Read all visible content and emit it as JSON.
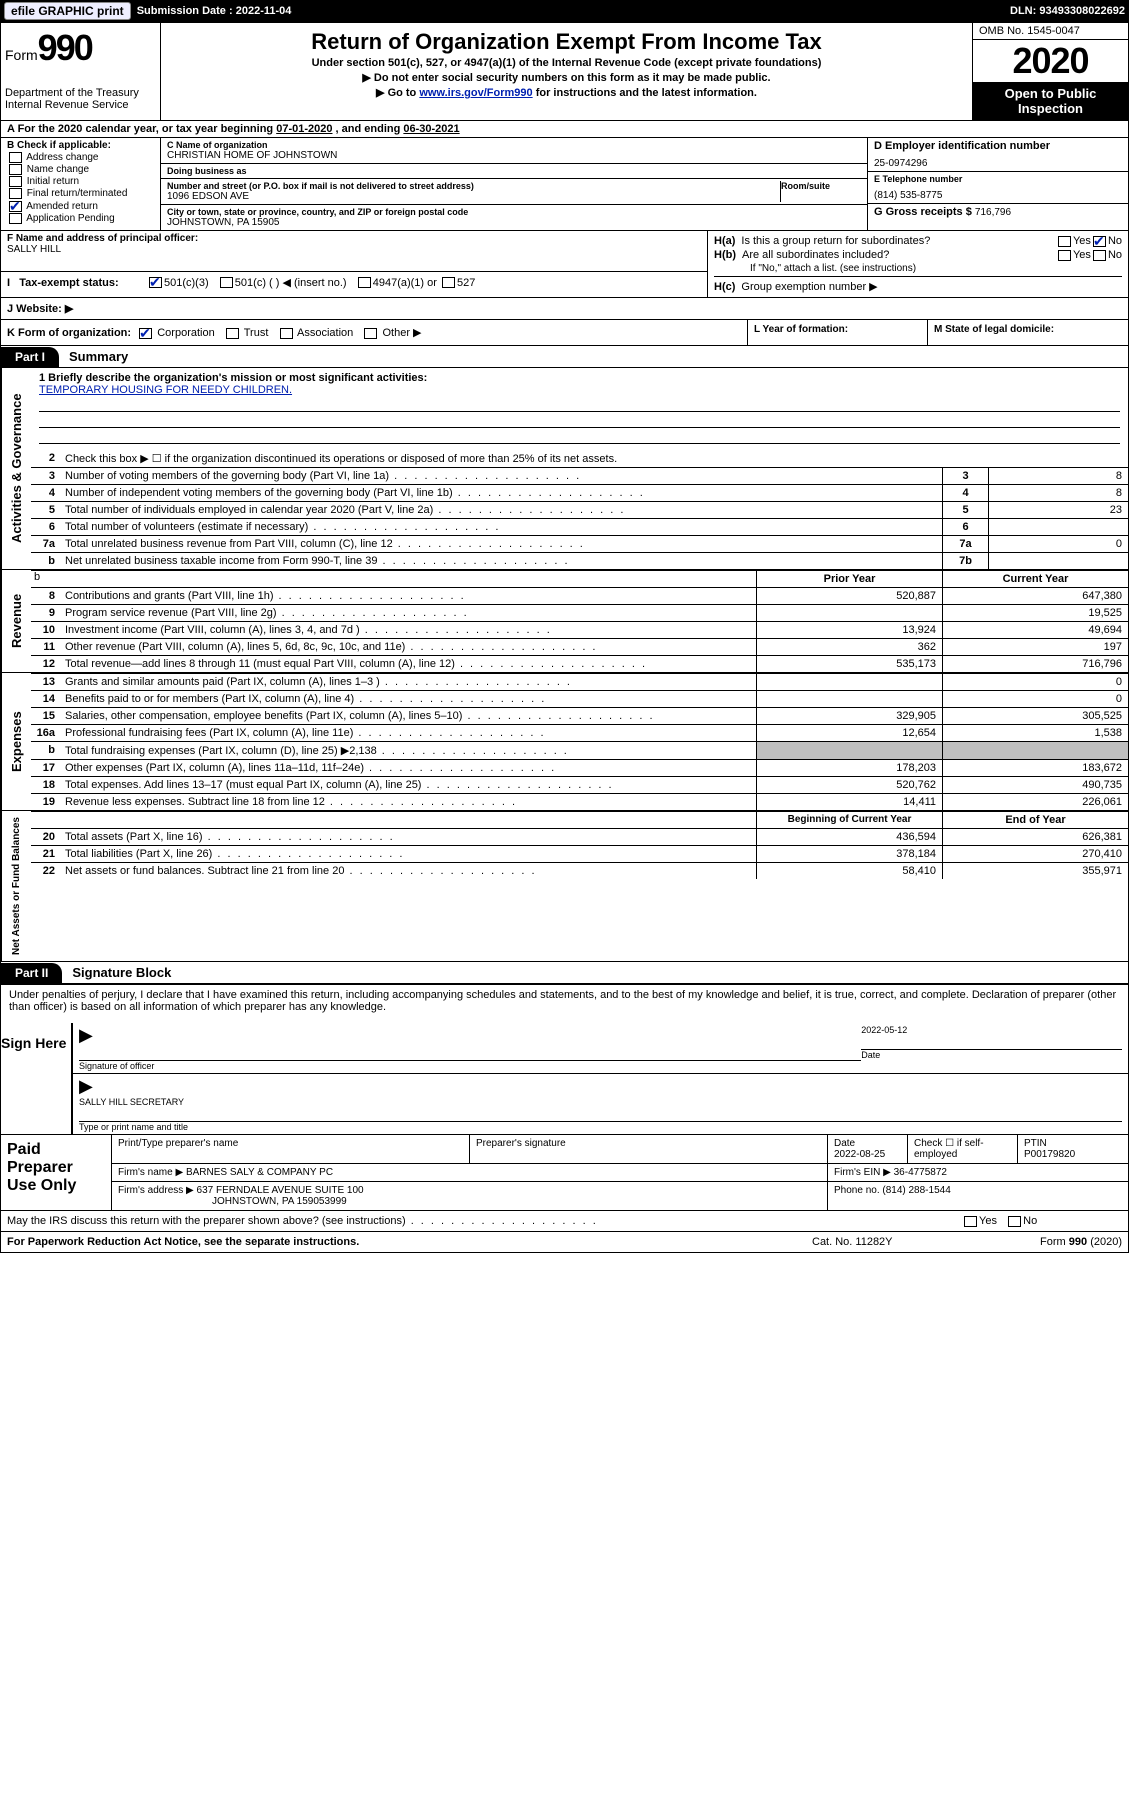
{
  "topbar": {
    "efile": "efile GRAPHIC print",
    "subdate_label": "Submission Date : ",
    "subdate": "2022-11-04",
    "dln_label": "DLN: ",
    "dln": "93493308022692"
  },
  "header": {
    "form_label": "Form",
    "form_num": "990",
    "dept": "Department of the Treasury\nInternal Revenue Service",
    "title": "Return of Organization Exempt From Income Tax",
    "sub": "Under section 501(c), 527, or 4947(a)(1) of the Internal Revenue Code (except private foundations)",
    "l1": "▶ Do not enter social security numbers on this form as it may be made public.",
    "l2_pre": "▶ Go to ",
    "l2_link": "www.irs.gov/Form990",
    "l2_post": " for instructions and the latest information.",
    "omb": "OMB No. 1545-0047",
    "year": "2020",
    "inspect": "Open to Public Inspection"
  },
  "period": {
    "text_pre": "A For the 2020 calendar year, or tax year beginning ",
    "begin": "07-01-2020",
    "mid": " , and ending ",
    "end": "06-30-2021"
  },
  "boxB": {
    "label": "B Check if applicable:",
    "items": [
      "Address change",
      "Name change",
      "Initial return",
      "Final return/terminated",
      "Amended return",
      "Application Pending"
    ],
    "checked": [
      false,
      false,
      false,
      false,
      true,
      false
    ]
  },
  "boxC": {
    "name_lbl": "C Name of organization",
    "name": "CHRISTIAN HOME OF JOHNSTOWN",
    "dba_lbl": "Doing business as",
    "dba": "",
    "addr_lbl": "Number and street (or P.O. box if mail is not delivered to street address)",
    "room_lbl": "Room/suite",
    "addr": "1096 EDSON AVE",
    "city_lbl": "City or town, state or province, country, and ZIP or foreign postal code",
    "city": "JOHNSTOWN, PA  15905"
  },
  "boxD": {
    "ein_lbl": "D Employer identification number",
    "ein": "25-0974296",
    "tel_lbl": "E Telephone number",
    "tel": "(814) 535-8775",
    "gross_lbl": "G Gross receipts $ ",
    "gross": "716,796"
  },
  "boxF": {
    "lbl": "F Name and address of principal officer:",
    "name": "SALLY HILL"
  },
  "boxH": {
    "ha": "Is this a group return for subordinates?",
    "hb": "Are all subordinates included?",
    "hb_note": "If \"No,\" attach a list. (see instructions)",
    "hc": "Group exemption number ▶",
    "ha_yes": false,
    "ha_no": true,
    "hb_yes": false,
    "hb_no": false
  },
  "taxexempt": {
    "lbl": "Tax-exempt status:",
    "o1": "501(c)(3)",
    "o1c": true,
    "o2": "501(c) (  ) ◀ (insert no.)",
    "o2c": false,
    "o3": "4947(a)(1) or",
    "o3c": false,
    "o4": "527",
    "o4c": false
  },
  "website": {
    "lbl": "J   Website: ▶",
    "val": ""
  },
  "kline": {
    "lbl": "K Form of organization:",
    "opts": [
      "Corporation",
      "Trust",
      "Association",
      "Other ▶"
    ],
    "checked": [
      true,
      false,
      false,
      false
    ]
  },
  "lline": {
    "lbl": "L Year of formation:",
    "val": ""
  },
  "mline": {
    "lbl": "M State of legal domicile:",
    "val": ""
  },
  "part1": {
    "tab": "Part I",
    "title": "Summary"
  },
  "mission": {
    "q": "1  Briefly describe the organization's mission or most significant activities:",
    "a": "TEMPORARY HOUSING FOR NEEDY CHILDREN."
  },
  "gov_lines": [
    {
      "n": "2",
      "d": "Check this box ▶ ☐  if the organization discontinued its operations or disposed of more than 25% of its net assets.",
      "ln": "",
      "v": ""
    },
    {
      "n": "3",
      "d": "Number of voting members of the governing body (Part VI, line 1a)",
      "ln": "3",
      "v": "8"
    },
    {
      "n": "4",
      "d": "Number of independent voting members of the governing body (Part VI, line 1b)",
      "ln": "4",
      "v": "8"
    },
    {
      "n": "5",
      "d": "Total number of individuals employed in calendar year 2020 (Part V, line 2a)",
      "ln": "5",
      "v": "23"
    },
    {
      "n": "6",
      "d": "Total number of volunteers (estimate if necessary)",
      "ln": "6",
      "v": ""
    },
    {
      "n": "7a",
      "d": "Total unrelated business revenue from Part VIII, column (C), line 12",
      "ln": "7a",
      "v": "0"
    },
    {
      "n": "b",
      "d": "Net unrelated business taxable income from Form 990-T, line 39",
      "ln": "7b",
      "v": ""
    }
  ],
  "rev_head": {
    "c1": "Prior Year",
    "c2": "Current Year"
  },
  "rev_lines": [
    {
      "n": "8",
      "d": "Contributions and grants (Part VIII, line 1h)",
      "c1": "520,887",
      "c2": "647,380"
    },
    {
      "n": "9",
      "d": "Program service revenue (Part VIII, line 2g)",
      "c1": "",
      "c2": "19,525"
    },
    {
      "n": "10",
      "d": "Investment income (Part VIII, column (A), lines 3, 4, and 7d )",
      "c1": "13,924",
      "c2": "49,694"
    },
    {
      "n": "11",
      "d": "Other revenue (Part VIII, column (A), lines 5, 6d, 8c, 9c, 10c, and 11e)",
      "c1": "362",
      "c2": "197"
    },
    {
      "n": "12",
      "d": "Total revenue—add lines 8 through 11 (must equal Part VIII, column (A), line 12)",
      "c1": "535,173",
      "c2": "716,796"
    }
  ],
  "exp_lines": [
    {
      "n": "13",
      "d": "Grants and similar amounts paid (Part IX, column (A), lines 1–3 )",
      "c1": "",
      "c2": "0"
    },
    {
      "n": "14",
      "d": "Benefits paid to or for members (Part IX, column (A), line 4)",
      "c1": "",
      "c2": "0"
    },
    {
      "n": "15",
      "d": "Salaries, other compensation, employee benefits (Part IX, column (A), lines 5–10)",
      "c1": "329,905",
      "c2": "305,525"
    },
    {
      "n": "16a",
      "d": "Professional fundraising fees (Part IX, column (A), line 11e)",
      "c1": "12,654",
      "c2": "1,538"
    },
    {
      "n": "b",
      "d": "Total fundraising expenses (Part IX, column (D), line 25) ▶2,138",
      "c1": "SHADE",
      "c2": "SHADE"
    },
    {
      "n": "17",
      "d": "Other expenses (Part IX, column (A), lines 11a–11d, 11f–24e)",
      "c1": "178,203",
      "c2": "183,672"
    },
    {
      "n": "18",
      "d": "Total expenses. Add lines 13–17 (must equal Part IX, column (A), line 25)",
      "c1": "520,762",
      "c2": "490,735"
    },
    {
      "n": "19",
      "d": "Revenue less expenses. Subtract line 18 from line 12",
      "c1": "14,411",
      "c2": "226,061"
    }
  ],
  "na_head": {
    "c1": "Beginning of Current Year",
    "c2": "End of Year"
  },
  "na_lines": [
    {
      "n": "20",
      "d": "Total assets (Part X, line 16)",
      "c1": "436,594",
      "c2": "626,381"
    },
    {
      "n": "21",
      "d": "Total liabilities (Part X, line 26)",
      "c1": "378,184",
      "c2": "270,410"
    },
    {
      "n": "22",
      "d": "Net assets or fund balances. Subtract line 21 from line 20",
      "c1": "58,410",
      "c2": "355,971"
    }
  ],
  "side_labels": {
    "gov": "Activities & Governance",
    "rev": "Revenue",
    "exp": "Expenses",
    "na": "Net Assets or Fund Balances"
  },
  "part2": {
    "tab": "Part II",
    "title": "Signature Block"
  },
  "perjury": "Under penalties of perjury, I declare that I have examined this return, including accompanying schedules and statements, and to the best of my knowledge and belief, it is true, correct, and complete. Declaration of preparer (other than officer) is based on all information of which preparer has any knowledge.",
  "sign": {
    "here": "Sign Here",
    "sig_lbl": "Signature of officer",
    "date_lbl": "Date",
    "date": "2022-05-12",
    "name": "SALLY HILL  SECRETARY",
    "name_lbl": "Type or print name and title"
  },
  "paid": {
    "here": "Paid Preparer Use Only",
    "h1": "Print/Type preparer's name",
    "h2": "Preparer's signature",
    "h3_lbl": "Date",
    "h3": "2022-08-25",
    "h4": "Check ☐  if self-employed",
    "h5_lbl": "PTIN",
    "h5": "P00179820",
    "firm_lbl": "Firm's name    ▶ ",
    "firm": "BARNES SALY & COMPANY PC",
    "ein_lbl": "Firm's EIN ▶ ",
    "ein": "36-4775872",
    "addr_lbl": "Firm's address ▶ ",
    "addr1": "637 FERNDALE AVENUE SUITE 100",
    "addr2": "JOHNSTOWN, PA  159053999",
    "phone_lbl": "Phone no. ",
    "phone": "(814) 288-1544"
  },
  "discuss": {
    "q": "May the IRS discuss this return with the preparer shown above? (see instructions)",
    "yes": "Yes",
    "no": "No"
  },
  "footer": {
    "l": "For Paperwork Reduction Act Notice, see the separate instructions.",
    "m": "Cat. No. 11282Y",
    "r": "Form 990 (2020)"
  }
}
